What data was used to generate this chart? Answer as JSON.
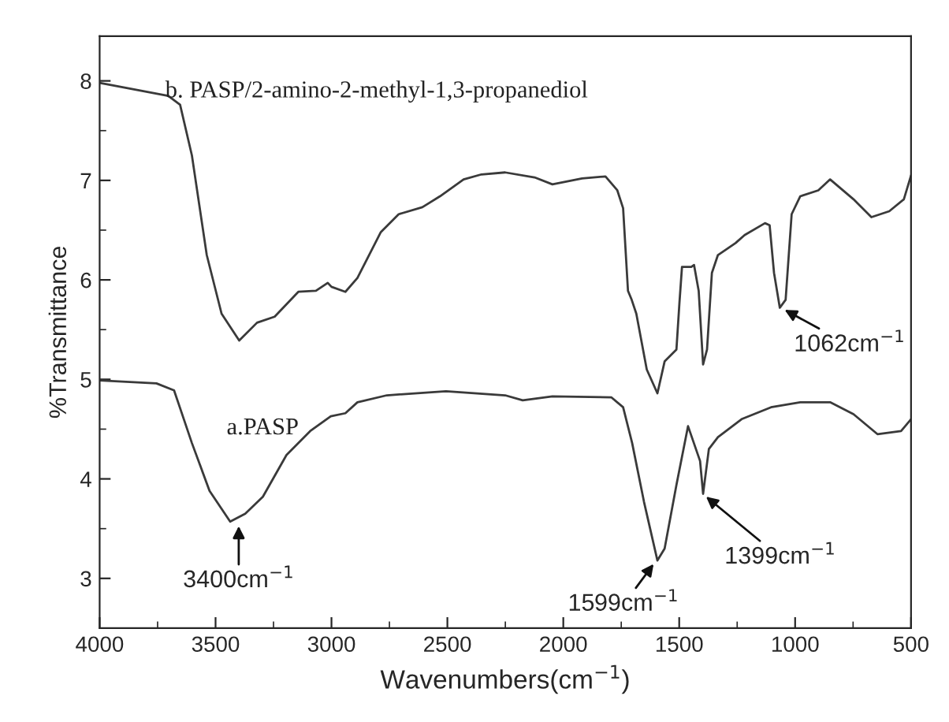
{
  "chart_data": {
    "type": "line",
    "xlabel": "Wavenumbers(cm$^{−1}$)",
    "ylabel": "%Transmittance",
    "xlim": [
      4000,
      500
    ],
    "ylim": [
      2.5,
      8.45
    ],
    "xticks": [
      4000,
      3500,
      3000,
      2500,
      2000,
      1500,
      1000,
      500
    ],
    "yticks": [
      3,
      4,
      5,
      6,
      7,
      8
    ],
    "grid": false,
    "legend": false,
    "marker": "none",
    "line_style": "solid",
    "series": [
      {
        "name": "b. PASP/2-amino-2-methyl-1,3-propanediol",
        "color": "#3a3a3a",
        "x": [
          4000,
          3704,
          3653,
          3602,
          3538,
          3474,
          3398,
          3321,
          3245,
          3143,
          3067,
          3016,
          3000,
          2940,
          2888,
          2787,
          2710,
          2608,
          2532,
          2430,
          2353,
          2251,
          2124,
          2047,
          1919,
          1818,
          1767,
          1742,
          1721,
          1705,
          1685,
          1640,
          1594,
          1563,
          1512,
          1499,
          1488,
          1448,
          1436,
          1416,
          1397,
          1380,
          1359,
          1333,
          1257,
          1218,
          1130,
          1110,
          1091,
          1066,
          1041,
          1015,
          978,
          900,
          849,
          748,
          671,
          594,
          531,
          500
        ],
        "values": [
          7.98,
          7.85,
          7.76,
          7.25,
          6.25,
          5.66,
          5.39,
          5.57,
          5.63,
          5.88,
          5.89,
          5.97,
          5.93,
          5.88,
          6.02,
          6.48,
          6.66,
          6.73,
          6.84,
          7.01,
          7.06,
          7.08,
          7.03,
          6.96,
          7.02,
          7.04,
          6.9,
          6.72,
          5.89,
          5.8,
          5.66,
          5.1,
          4.86,
          5.18,
          5.3,
          5.77,
          6.13,
          6.13,
          6.15,
          5.89,
          5.15,
          5.3,
          6.07,
          6.25,
          6.37,
          6.45,
          6.57,
          6.55,
          6.07,
          5.72,
          5.8,
          6.66,
          6.84,
          6.9,
          7.01,
          6.81,
          6.63,
          6.69,
          6.81,
          7.05
        ]
      },
      {
        "name": "a.PASP",
        "color": "#3a3a3a",
        "x": [
          4000,
          3755,
          3679,
          3602,
          3526,
          3437,
          3372,
          3296,
          3194,
          3092,
          3003,
          2940,
          2888,
          2761,
          2506,
          2251,
          2175,
          2047,
          1793,
          1742,
          1703,
          1652,
          1594,
          1563,
          1512,
          1462,
          1410,
          1397,
          1372,
          1333,
          1231,
          1104,
          978,
          849,
          748,
          645,
          543,
          500
        ],
        "values": [
          4.99,
          4.96,
          4.89,
          4.36,
          3.88,
          3.57,
          3.65,
          3.82,
          4.24,
          4.48,
          4.63,
          4.66,
          4.77,
          4.84,
          4.88,
          4.84,
          4.79,
          4.83,
          4.82,
          4.72,
          4.36,
          3.77,
          3.18,
          3.3,
          3.94,
          4.53,
          4.18,
          3.85,
          4.3,
          4.42,
          4.6,
          4.72,
          4.77,
          4.77,
          4.65,
          4.45,
          4.48,
          4.6
        ]
      }
    ],
    "annotations": [
      {
        "text": "3400cm$^{−1}$",
        "x": 3400,
        "y": 3.57
      },
      {
        "text": "1599cm$^{−1}$",
        "x": 1599,
        "y": 3.18
      },
      {
        "text": "1399cm$^{−1}$",
        "x": 1399,
        "y": 3.85
      },
      {
        "text": "1062cm$^{−1}$",
        "x": 1062,
        "y": 5.72
      }
    ]
  }
}
